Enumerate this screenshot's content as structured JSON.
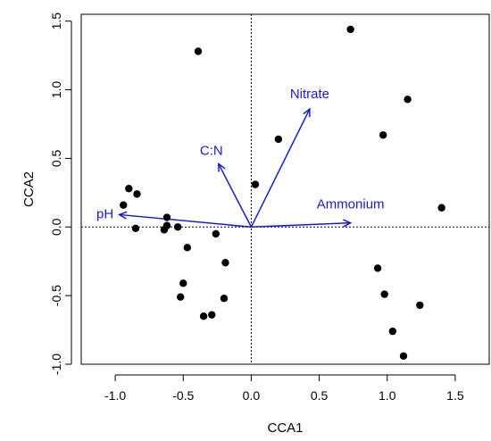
{
  "chart_data": {
    "type": "scatter",
    "xlabel": "CCA1",
    "ylabel": "CCA2",
    "xlim": [
      -1.25,
      1.75
    ],
    "ylim": [
      -1.0,
      1.55
    ],
    "x_ticks": [
      -1.0,
      -0.5,
      0.0,
      0.5,
      1.0,
      1.5
    ],
    "x_tick_labels": [
      "-1.0",
      "-0.5",
      "0.0",
      "0.5",
      "1.0",
      "1.5"
    ],
    "y_ticks": [
      -1.0,
      -0.5,
      0.0,
      0.5,
      1.0,
      1.5
    ],
    "y_tick_labels": [
      "-1.0",
      "-0.5",
      "0.0",
      "0.5",
      "1.0",
      "1.5"
    ],
    "grid": false,
    "reference_lines": {
      "x": 0,
      "y": 0
    },
    "point_color": "#000000",
    "vector_color": "#1a1acc",
    "points": [
      {
        "x": -0.39,
        "y": 1.28
      },
      {
        "x": 0.73,
        "y": 1.44
      },
      {
        "x": 1.15,
        "y": 0.93
      },
      {
        "x": 0.97,
        "y": 0.67
      },
      {
        "x": 0.2,
        "y": 0.64
      },
      {
        "x": 0.03,
        "y": 0.31
      },
      {
        "x": 1.4,
        "y": 0.14
      },
      {
        "x": -0.9,
        "y": 0.28
      },
      {
        "x": -0.84,
        "y": 0.24
      },
      {
        "x": -0.94,
        "y": 0.16
      },
      {
        "x": -0.62,
        "y": 0.07
      },
      {
        "x": -0.85,
        "y": -0.01
      },
      {
        "x": -0.62,
        "y": 0.01
      },
      {
        "x": -0.54,
        "y": 0.0
      },
      {
        "x": -0.64,
        "y": -0.02
      },
      {
        "x": -0.26,
        "y": -0.05
      },
      {
        "x": -0.47,
        "y": -0.15
      },
      {
        "x": -0.19,
        "y": -0.26
      },
      {
        "x": -0.5,
        "y": -0.41
      },
      {
        "x": -0.52,
        "y": -0.51
      },
      {
        "x": -0.2,
        "y": -0.52
      },
      {
        "x": -0.35,
        "y": -0.65
      },
      {
        "x": -0.29,
        "y": -0.64
      },
      {
        "x": 0.93,
        "y": -0.3
      },
      {
        "x": 0.98,
        "y": -0.49
      },
      {
        "x": 1.24,
        "y": -0.57
      },
      {
        "x": 1.04,
        "y": -0.76
      },
      {
        "x": 1.12,
        "y": -0.94
      }
    ],
    "vectors": [
      {
        "label": "Nitrate",
        "x": 0.43,
        "y": 0.86
      },
      {
        "label": "C:N",
        "x": -0.24,
        "y": 0.46
      },
      {
        "label": "Ammonium",
        "x": 0.73,
        "y": 0.03
      },
      {
        "label": "pH",
        "x": -0.97,
        "y": 0.09
      }
    ]
  }
}
